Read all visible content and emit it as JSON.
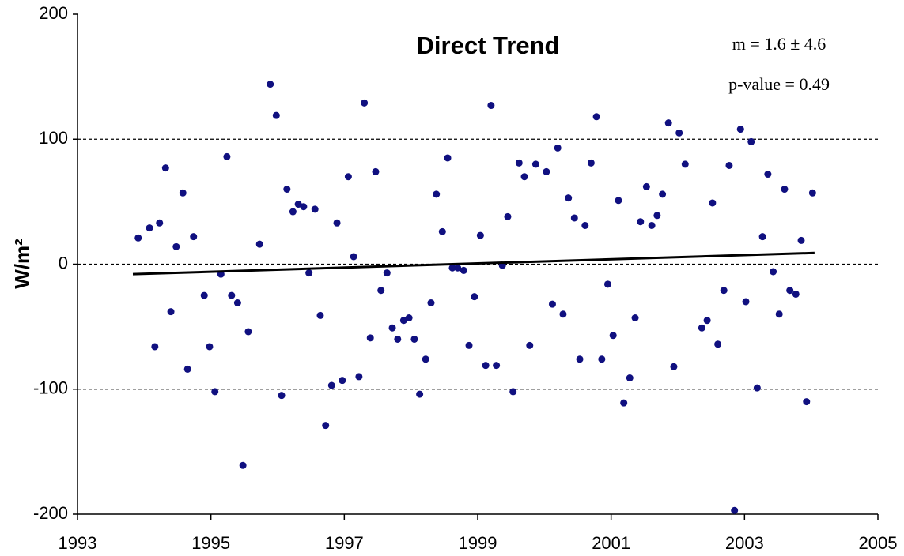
{
  "chart_data": {
    "type": "scatter",
    "title": "Direct Trend",
    "y_label": "W/m²",
    "annotations": [
      "m = 1.6 ± 4.6",
      "p-value = 0.49"
    ],
    "color": "#101080",
    "x": [
      1993.91,
      1994.08,
      1994.16,
      1994.23,
      1994.32,
      1994.4,
      1994.48,
      1994.58,
      1994.65,
      1994.74,
      1994.9,
      1994.98,
      1995.06,
      1995.15,
      1995.24,
      1995.31,
      1995.4,
      1995.48,
      1995.56,
      1995.73,
      1995.89,
      1995.98,
      1996.06,
      1996.14,
      1996.23,
      1996.31,
      1996.39,
      1996.47,
      1996.56,
      1996.64,
      1996.72,
      1996.81,
      1996.89,
      1996.97,
      1997.06,
      1997.14,
      1997.22,
      1997.3,
      1997.39,
      1997.47,
      1997.55,
      1997.64,
      1997.72,
      1997.8,
      1997.89,
      1997.97,
      1998.05,
      1998.13,
      1998.22,
      1998.3,
      1998.38,
      1998.47,
      1998.55,
      1998.62,
      1998.7,
      1998.79,
      1998.87,
      1998.95,
      1999.04,
      1999.12,
      1999.2,
      1999.28,
      1999.37,
      1999.45,
      1999.53,
      1999.62,
      1999.7,
      1999.78,
      1999.87,
      2000.03,
      2000.12,
      2000.2,
      2000.28,
      2000.36,
      2000.45,
      2000.53,
      2000.61,
      2000.7,
      2000.78,
      2000.86,
      2000.95,
      2001.03,
      2001.11,
      2001.19,
      2001.28,
      2001.36,
      2001.44,
      2001.53,
      2001.61,
      2001.69,
      2001.77,
      2001.86,
      2001.94,
      2002.02,
      2002.11,
      2002.36,
      2002.44,
      2002.52,
      2002.6,
      2002.69,
      2002.77,
      2002.85,
      2002.94,
      2003.02,
      2003.1,
      2003.19,
      2003.27,
      2003.35,
      2003.43,
      2003.52,
      2003.6,
      2003.68,
      2003.77,
      2003.85,
      2003.93,
      2004.02
    ],
    "values": [
      21,
      29,
      -66,
      33,
      77,
      -38,
      14,
      57,
      -84,
      22,
      -25,
      -66,
      -102,
      -8,
      86,
      -25,
      -31,
      -161,
      -54,
      16,
      144,
      119,
      -105,
      60,
      42,
      48,
      46,
      -7,
      44,
      -41,
      -129,
      -97,
      33,
      -93,
      70,
      6,
      -90,
      129,
      -59,
      74,
      -21,
      -7,
      -51,
      -60,
      -45,
      -43,
      -60,
      -104,
      -76,
      -31,
      56,
      26,
      85,
      -3,
      -3,
      -5,
      -65,
      -26,
      23,
      -81,
      127,
      -81,
      -1,
      38,
      -102,
      81,
      70,
      -65,
      80,
      74,
      -32,
      93,
      -40,
      53,
      37,
      -76,
      31,
      81,
      118,
      -76,
      -16,
      -57,
      51,
      -111,
      -91,
      -43,
      34,
      62,
      31,
      39,
      56,
      113,
      -82,
      105,
      80,
      -51,
      -45,
      49,
      -64,
      -21,
      79,
      -197,
      108,
      -30,
      98,
      -99,
      22,
      72,
      -6,
      -40,
      60,
      -21,
      -24,
      19,
      -110,
      57
    ],
    "trend": {
      "x": [
        1993.83,
        2004.05
      ],
      "y": [
        -8,
        9
      ],
      "color": "#000000"
    },
    "xlim": [
      1993,
      2005
    ],
    "xticks": [
      1993,
      1995,
      1997,
      1999,
      2001,
      2003,
      2005
    ],
    "ylim": [
      -200,
      200
    ],
    "yticks": [
      -200,
      -100,
      0,
      100,
      200
    ],
    "grid": true
  }
}
